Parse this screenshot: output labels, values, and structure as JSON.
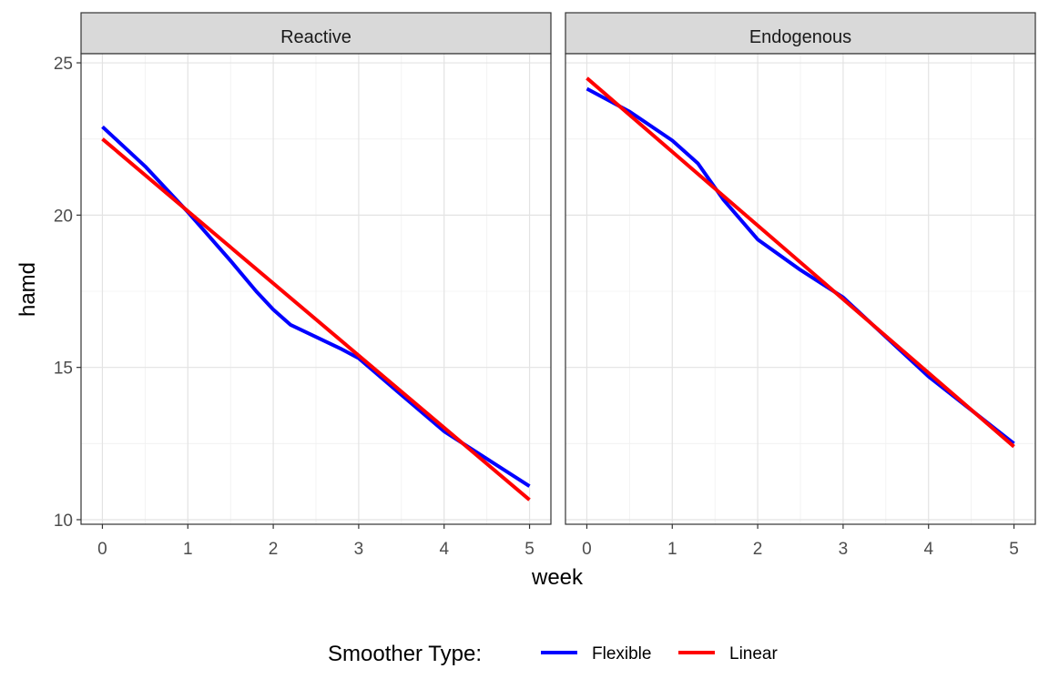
{
  "chart_data": {
    "type": "line",
    "xlabel": "week",
    "ylabel": "hamd",
    "xlim": [
      -0.25,
      5.25
    ],
    "ylim": [
      9.85,
      25.3
    ],
    "x_ticks": [
      0,
      1,
      2,
      3,
      4,
      5
    ],
    "y_ticks": [
      10,
      15,
      20,
      25
    ],
    "grid": true,
    "legend": {
      "title": "Smoother Type:",
      "position": "bottom",
      "entries": [
        {
          "name": "Flexible",
          "color": "#0000ff"
        },
        {
          "name": "Linear",
          "color": "#ff0000"
        }
      ]
    },
    "panels": [
      {
        "title": "Reactive",
        "series": [
          {
            "name": "Flexible",
            "color": "#0000ff",
            "x": [
              0,
              0.5,
              1,
              1.5,
              1.8,
              2,
              2.2,
              2.5,
              2.8,
              3,
              3.5,
              4,
              4.5,
              5
            ],
            "y": [
              22.9,
              21.6,
              20.1,
              18.5,
              17.5,
              16.9,
              16.4,
              16.0,
              15.6,
              15.3,
              14.1,
              12.9,
              12.0,
              11.1
            ]
          },
          {
            "name": "Linear",
            "color": "#ff0000",
            "x": [
              0,
              5
            ],
            "y": [
              22.5,
              10.65
            ]
          }
        ]
      },
      {
        "title": "Endogenous",
        "series": [
          {
            "name": "Flexible",
            "color": "#0000ff",
            "x": [
              0,
              0.5,
              1,
              1.3,
              1.6,
              2,
              2.5,
              3,
              3.5,
              4,
              4.5,
              5
            ],
            "y": [
              24.15,
              23.4,
              22.45,
              21.7,
              20.5,
              19.2,
              18.2,
              17.3,
              16.0,
              14.7,
              13.6,
              12.5
            ]
          },
          {
            "name": "Linear",
            "color": "#ff0000",
            "x": [
              0,
              5
            ],
            "y": [
              24.5,
              12.4
            ]
          }
        ]
      }
    ]
  }
}
